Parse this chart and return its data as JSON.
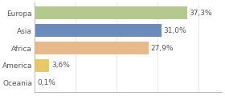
{
  "categories": [
    "Europa",
    "Asia",
    "Africa",
    "America",
    "Oceania"
  ],
  "values": [
    37.3,
    31.0,
    27.9,
    3.6,
    0.1
  ],
  "labels": [
    "37,3%",
    "31,0%",
    "27,9%",
    "3,6%",
    "0,1%"
  ],
  "bar_colors": [
    "#b5c98e",
    "#6b8cba",
    "#e8b98a",
    "#e8c96a",
    "#cccccc"
  ],
  "background_color": "#ffffff",
  "plot_bg_color": "#ffffff",
  "xlim": [
    0,
    46
  ],
  "label_fontsize": 6.5,
  "tick_fontsize": 6.5,
  "bar_height": 0.75
}
